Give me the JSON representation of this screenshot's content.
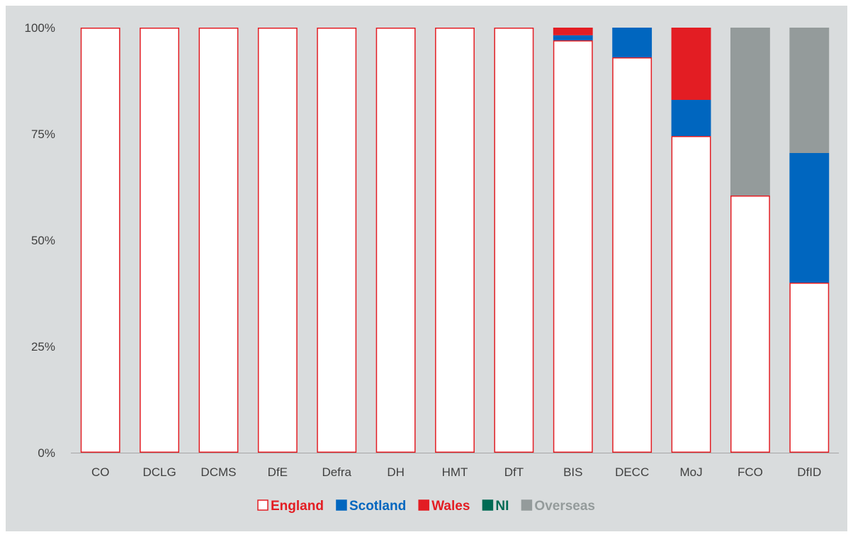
{
  "chart_data": {
    "type": "bar",
    "stacked": true,
    "categories": [
      "CO",
      "DCLG",
      "DCMS",
      "DfE",
      "Defra",
      "DH",
      "HMT",
      "DfT",
      "BIS",
      "DECC",
      "MoJ",
      "FCO",
      "DfID"
    ],
    "series": [
      {
        "name": "England",
        "color": "#ffffff",
        "stroke": "#e31d23",
        "values": [
          100,
          100,
          100,
          100,
          100,
          100,
          100,
          100,
          97,
          93,
          74.5,
          60.5,
          40
        ]
      },
      {
        "name": "Scotland",
        "color": "#0066bf",
        "values": [
          0,
          0,
          0,
          0,
          0,
          0,
          0,
          0,
          1.2,
          7,
          8.5,
          0,
          30.5
        ]
      },
      {
        "name": "Wales",
        "color": "#e31d23",
        "values": [
          0,
          0,
          0,
          0,
          0,
          0,
          0,
          0,
          1.8,
          0,
          17,
          0,
          0
        ]
      },
      {
        "name": "NI",
        "color": "#006b54",
        "values": [
          0,
          0,
          0,
          0,
          0,
          0,
          0,
          0,
          0,
          0,
          0,
          0,
          0
        ]
      },
      {
        "name": "Overseas",
        "color": "#949b9b",
        "values": [
          0,
          0,
          0,
          0,
          0,
          0,
          0,
          0,
          0,
          0,
          0,
          39.5,
          29.5
        ]
      }
    ],
    "yticks": [
      "0%",
      "25%",
      "50%",
      "75%",
      "100%"
    ],
    "ylim": [
      0,
      100
    ],
    "grid": false,
    "legend_position": "bottom",
    "legend": [
      {
        "label": "England",
        "text_color": "#e31d23",
        "swatch": "#ffffff",
        "swatch_stroke": "#e31d23"
      },
      {
        "label": "Scotland",
        "text_color": "#0066bf",
        "swatch": "#0066bf"
      },
      {
        "label": "Wales",
        "text_color": "#e31d23",
        "swatch": "#e31d23"
      },
      {
        "label": "NI",
        "text_color": "#006b54",
        "swatch": "#006b54"
      },
      {
        "label": "Overseas",
        "text_color": "#949b9b",
        "swatch": "#949b9b"
      }
    ]
  }
}
